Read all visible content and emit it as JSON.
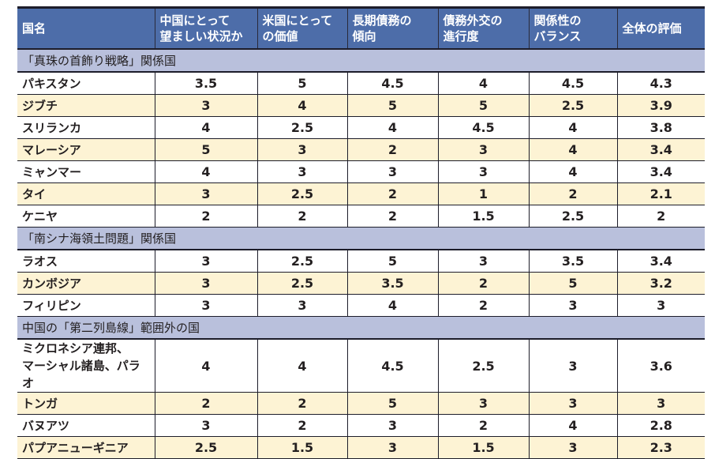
{
  "headers": [
    "国名",
    "中国にとって\n望ましい状況か",
    "米国にとって\nの価値",
    "長期債務の\n傾向",
    "債務外交の\n進行度",
    "関係性の\nバランス",
    "全体の評価"
  ],
  "colors": {
    "header": "#4d6da9",
    "section": "#b9c0dc",
    "alt_row": "#fdf3d4"
  },
  "groups": [
    {
      "title": "「真珠の首飾り戦略」関係国",
      "rows": [
        {
          "name": "パキスタン",
          "values": [
            "3.5",
            "5",
            "4.5",
            "4",
            "4.5",
            "4.3"
          ]
        },
        {
          "name": "ジブチ",
          "values": [
            "3",
            "4",
            "5",
            "5",
            "2.5",
            "3.9"
          ]
        },
        {
          "name": "スリランカ",
          "values": [
            "4",
            "2.5",
            "4",
            "4.5",
            "4",
            "3.8"
          ]
        },
        {
          "name": "マレーシア",
          "values": [
            "5",
            "3",
            "2",
            "3",
            "4",
            "3.4"
          ]
        },
        {
          "name": "ミャンマー",
          "values": [
            "4",
            "3",
            "3",
            "3",
            "4",
            "3.4"
          ]
        },
        {
          "name": "タイ",
          "values": [
            "3",
            "2.5",
            "2",
            "1",
            "2",
            "2.1"
          ]
        },
        {
          "name": "ケニヤ",
          "values": [
            "2",
            "2",
            "2",
            "1.5",
            "2.5",
            "2"
          ]
        }
      ]
    },
    {
      "title": "「南シナ海領土問題」関係国",
      "rows": [
        {
          "name": "ラオス",
          "values": [
            "3",
            "2.5",
            "5",
            "3",
            "3.5",
            "3.4"
          ]
        },
        {
          "name": "カンボジア",
          "values": [
            "3",
            "2.5",
            "3.5",
            "2",
            "5",
            "3.2"
          ]
        },
        {
          "name": "フィリピン",
          "values": [
            "3",
            "3",
            "4",
            "2",
            "3",
            "3"
          ]
        }
      ]
    },
    {
      "title": "中国の「第二列島線」範囲外の国",
      "rows": [
        {
          "name": "ミクロネシア連邦、\nマーシャル諸島、パラオ",
          "values": [
            "4",
            "4",
            "4.5",
            "2.5",
            "3",
            "3.6"
          ]
        },
        {
          "name": "トンガ",
          "values": [
            "2",
            "2",
            "5",
            "3",
            "3",
            "3"
          ]
        },
        {
          "name": "バヌアツ",
          "values": [
            "3",
            "2",
            "3",
            "2",
            "4",
            "2.8"
          ]
        },
        {
          "name": "パプアニューギニア",
          "values": [
            "2.5",
            "1.5",
            "3",
            "1.5",
            "3",
            "2.3"
          ]
        }
      ]
    }
  ]
}
